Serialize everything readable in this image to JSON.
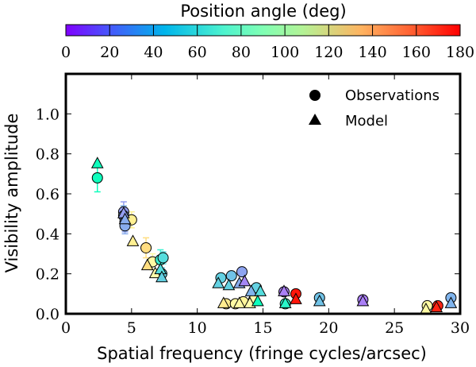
{
  "chart_data": {
    "type": "scatter",
    "xlabel": "Spatial frequency (fringe cycles/arcsec)",
    "ylabel": "Visibility amplitude",
    "xlim": [
      0,
      30
    ],
    "ylim": [
      0,
      1.2
    ],
    "x_ticks": [
      "0",
      "5",
      "10",
      "15",
      "20",
      "25",
      "30"
    ],
    "y_ticks": [
      "0.0",
      "0.2",
      "0.4",
      "0.6",
      "0.8",
      "1.0"
    ],
    "x_tick_values": [
      0,
      5,
      10,
      15,
      20,
      25,
      30
    ],
    "y_tick_values": [
      0,
      0.2,
      0.4,
      0.6,
      0.8,
      1.0
    ],
    "grid": false,
    "legend_position": "top-right",
    "colorbar": {
      "label": "Position angle (deg)",
      "range": [
        0,
        180
      ],
      "ticks": [
        "0",
        "20",
        "40",
        "60",
        "80",
        "100",
        "120",
        "140",
        "160",
        "180"
      ],
      "tick_values": [
        0,
        20,
        40,
        60,
        80,
        100,
        120,
        140,
        160,
        180
      ],
      "colormap": "rainbow"
    },
    "series": [
      {
        "name": "Observations",
        "marker": "circle",
        "points": [
          {
            "x": 2.4,
            "y": 0.68,
            "err": 0.07,
            "pa": 85
          },
          {
            "x": 4.4,
            "y": 0.51,
            "err": 0.05,
            "pa": 38
          },
          {
            "x": 4.4,
            "y": 0.49,
            "err": 0.05,
            "pa": 45
          },
          {
            "x": 4.5,
            "y": 0.46,
            "err": 0.05,
            "pa": 40
          },
          {
            "x": 4.5,
            "y": 0.44,
            "err": 0.04,
            "pa": 42
          },
          {
            "x": 5.0,
            "y": 0.47,
            "err": 0.04,
            "pa": 110
          },
          {
            "x": 6.1,
            "y": 0.33,
            "err": 0.05,
            "pa": 120
          },
          {
            "x": 6.6,
            "y": 0.26,
            "err": 0.04,
            "pa": 100
          },
          {
            "x": 7.2,
            "y": 0.27,
            "err": 0.05,
            "pa": 70
          },
          {
            "x": 7.3,
            "y": 0.2,
            "err": 0.03,
            "pa": 55
          },
          {
            "x": 7.4,
            "y": 0.28,
            "err": 0.03,
            "pa": 60
          },
          {
            "x": 11.8,
            "y": 0.18,
            "err": 0.02,
            "pa": 55
          },
          {
            "x": 12.6,
            "y": 0.19,
            "err": 0.02,
            "pa": 50
          },
          {
            "x": 13.4,
            "y": 0.21,
            "err": 0.02,
            "pa": 40
          },
          {
            "x": 14.5,
            "y": 0.13,
            "err": 0.02,
            "pa": 55
          },
          {
            "x": 12.2,
            "y": 0.05,
            "err": 0.01,
            "pa": 112
          },
          {
            "x": 12.9,
            "y": 0.05,
            "err": 0.01,
            "pa": 100
          },
          {
            "x": 13.5,
            "y": 0.06,
            "err": 0.01,
            "pa": 105
          },
          {
            "x": 14.3,
            "y": 0.07,
            "err": 0.01,
            "pa": 95
          },
          {
            "x": 16.6,
            "y": 0.11,
            "err": 0.01,
            "pa": 30
          },
          {
            "x": 16.7,
            "y": 0.05,
            "err": 0.01,
            "pa": 75
          },
          {
            "x": 17.5,
            "y": 0.1,
            "err": 0.01,
            "pa": 175
          },
          {
            "x": 19.3,
            "y": 0.08,
            "err": 0.01,
            "pa": 50
          },
          {
            "x": 22.6,
            "y": 0.07,
            "err": 0.01,
            "pa": 30
          },
          {
            "x": 27.5,
            "y": 0.04,
            "err": 0.01,
            "pa": 100
          },
          {
            "x": 28.3,
            "y": 0.04,
            "err": 0.01,
            "pa": 172
          },
          {
            "x": 29.3,
            "y": 0.08,
            "err": 0.01,
            "pa": 45
          }
        ]
      },
      {
        "name": "Model",
        "marker": "triangle",
        "points": [
          {
            "x": 2.4,
            "y": 0.75,
            "pa": 85
          },
          {
            "x": 4.4,
            "y": 0.5,
            "pa": 38
          },
          {
            "x": 4.5,
            "y": 0.47,
            "pa": 42
          },
          {
            "x": 5.1,
            "y": 0.36,
            "pa": 110
          },
          {
            "x": 6.2,
            "y": 0.24,
            "pa": 120
          },
          {
            "x": 6.8,
            "y": 0.2,
            "pa": 95
          },
          {
            "x": 7.2,
            "y": 0.22,
            "pa": 60
          },
          {
            "x": 7.3,
            "y": 0.18,
            "pa": 55
          },
          {
            "x": 11.6,
            "y": 0.15,
            "pa": 55
          },
          {
            "x": 12.4,
            "y": 0.14,
            "pa": 55
          },
          {
            "x": 13.2,
            "y": 0.15,
            "pa": 42
          },
          {
            "x": 13.6,
            "y": 0.16,
            "pa": 32
          },
          {
            "x": 14.1,
            "y": 0.11,
            "pa": 45
          },
          {
            "x": 14.8,
            "y": 0.11,
            "pa": 60
          },
          {
            "x": 12.0,
            "y": 0.05,
            "pa": 112
          },
          {
            "x": 13.2,
            "y": 0.05,
            "pa": 100
          },
          {
            "x": 14.0,
            "y": 0.05,
            "pa": 95
          },
          {
            "x": 14.6,
            "y": 0.06,
            "pa": 85
          },
          {
            "x": 16.6,
            "y": 0.11,
            "pa": 30
          },
          {
            "x": 16.7,
            "y": 0.05,
            "pa": 75
          },
          {
            "x": 17.5,
            "y": 0.07,
            "pa": 175
          },
          {
            "x": 19.3,
            "y": 0.06,
            "pa": 50
          },
          {
            "x": 22.6,
            "y": 0.06,
            "pa": 30
          },
          {
            "x": 27.4,
            "y": 0.02,
            "pa": 100
          },
          {
            "x": 28.2,
            "y": 0.03,
            "pa": 172
          },
          {
            "x": 29.3,
            "y": 0.05,
            "pa": 45
          }
        ]
      }
    ]
  }
}
